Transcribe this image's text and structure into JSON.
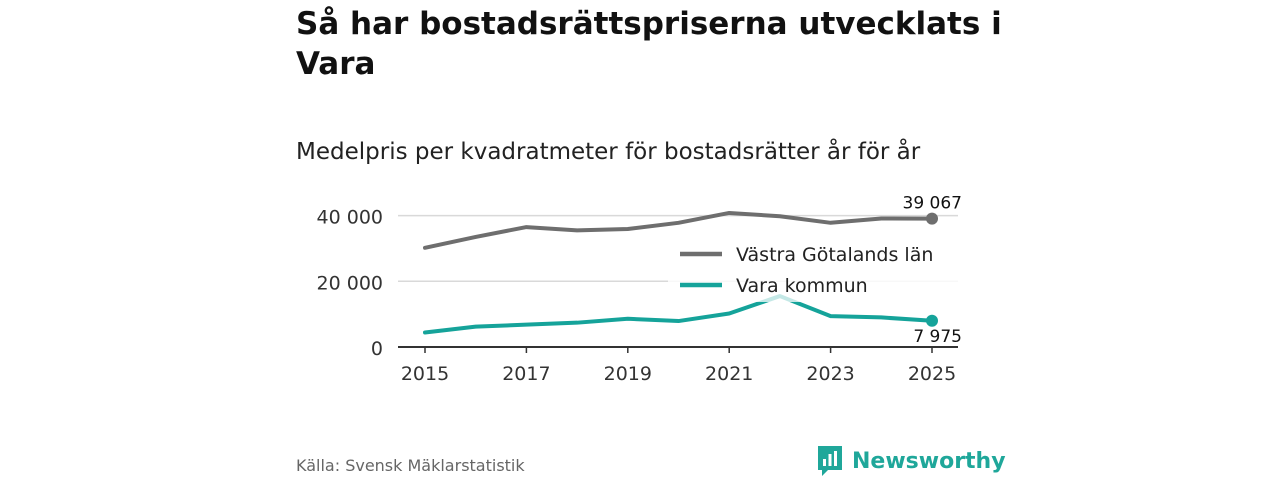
{
  "title": "Så har bostadsrättspriserna utvecklats i Vara",
  "subtitle": "Medelpris per kvadratmeter för bostadsrätter år för år",
  "source": "Källa: Svensk Mäklarstatistik",
  "brand": "Newsworthy",
  "colors": {
    "region": "#6e6e6e",
    "municipality": "#15a39a",
    "grid": "#d9d9d9",
    "axis": "#333333",
    "brand": "#1fa79a"
  },
  "chart_data": {
    "type": "line",
    "x": [
      2015,
      2016,
      2017,
      2018,
      2019,
      2020,
      2021,
      2022,
      2023,
      2024,
      2025
    ],
    "xticks": [
      2015,
      2017,
      2019,
      2021,
      2023,
      2025
    ],
    "yticks": [
      0,
      20000,
      40000
    ],
    "ytick_labels": [
      "0",
      "20 000",
      "40 000"
    ],
    "ylim": [
      0,
      42000
    ],
    "series": [
      {
        "name": "Västra Götalands län",
        "values": [
          30200,
          33500,
          36500,
          35500,
          35900,
          37800,
          40800,
          39800,
          37800,
          39100,
          39067
        ],
        "end_label": "39 067"
      },
      {
        "name": "Vara kommun",
        "values": [
          4400,
          6200,
          6800,
          7400,
          8600,
          7900,
          10200,
          15500,
          9400,
          9000,
          7975
        ],
        "end_label": "7 975"
      }
    ]
  }
}
